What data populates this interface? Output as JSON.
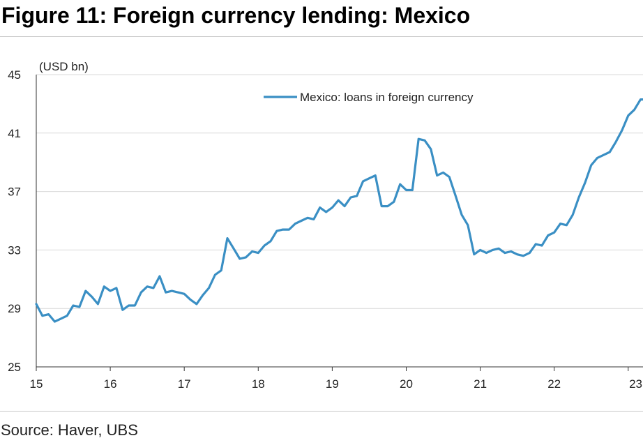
{
  "title": "Figure 11: Foreign currency lending: Mexico",
  "source": "Source: Haver, UBS",
  "colors": {
    "line": "#3a8fc4",
    "grid": "#d9d9d9",
    "axis": "#333333"
  },
  "chart_data": {
    "type": "line",
    "unit_label": "(USD bn)",
    "ylim": [
      25,
      45
    ],
    "yticks": [
      25,
      29,
      33,
      37,
      41,
      45
    ],
    "xlim": [
      15,
      23.2
    ],
    "xticks": [
      15,
      16,
      17,
      18,
      19,
      20,
      21,
      22,
      23
    ],
    "xtick_labels": [
      "15",
      "16",
      "17",
      "18",
      "19",
      "20",
      "21",
      "22",
      "23"
    ],
    "grid": true,
    "legend_position": "top-center",
    "series": [
      {
        "name": "Mexico: loans in foreign currency",
        "x": [
          15.0,
          15.083,
          15.167,
          15.25,
          15.333,
          15.417,
          15.5,
          15.583,
          15.667,
          15.75,
          15.833,
          15.917,
          16.0,
          16.083,
          16.167,
          16.25,
          16.333,
          16.417,
          16.5,
          16.583,
          16.667,
          16.75,
          16.833,
          16.917,
          17.0,
          17.083,
          17.167,
          17.25,
          17.333,
          17.417,
          17.5,
          17.583,
          17.667,
          17.75,
          17.833,
          17.917,
          18.0,
          18.083,
          18.167,
          18.25,
          18.333,
          18.417,
          18.5,
          18.583,
          18.667,
          18.75,
          18.833,
          18.917,
          19.0,
          19.083,
          19.167,
          19.25,
          19.333,
          19.417,
          19.5,
          19.583,
          19.667,
          19.75,
          19.833,
          19.917,
          20.0,
          20.083,
          20.167,
          20.25,
          20.333,
          20.417,
          20.5,
          20.583,
          20.667,
          20.75,
          20.833,
          20.917,
          21.0,
          21.083,
          21.167,
          21.25,
          21.333,
          21.417,
          21.5,
          21.583,
          21.667,
          21.75,
          21.833,
          21.917,
          22.0,
          22.083,
          22.167,
          22.25,
          22.333,
          22.417,
          22.5,
          22.583,
          22.667,
          22.75,
          22.833,
          22.917,
          23.0,
          23.083,
          23.167,
          23.2
        ],
        "values": [
          29.3,
          28.5,
          28.6,
          28.1,
          28.3,
          28.5,
          29.2,
          29.1,
          30.2,
          29.8,
          29.3,
          30.5,
          30.2,
          30.4,
          28.9,
          29.2,
          29.2,
          30.1,
          30.5,
          30.4,
          31.2,
          30.1,
          30.2,
          30.1,
          30.0,
          29.6,
          29.3,
          29.9,
          30.4,
          31.3,
          31.6,
          33.8,
          33.1,
          32.4,
          32.5,
          32.9,
          32.8,
          33.3,
          33.6,
          34.3,
          34.4,
          34.4,
          34.8,
          35.0,
          35.2,
          35.1,
          35.9,
          35.6,
          35.9,
          36.4,
          36.0,
          36.6,
          36.7,
          37.7,
          37.9,
          38.1,
          36.0,
          36.0,
          36.3,
          37.5,
          37.1,
          37.1,
          40.6,
          40.5,
          39.9,
          38.1,
          38.3,
          38.0,
          36.7,
          35.4,
          34.7,
          32.7,
          33.0,
          32.8,
          33.0,
          33.1,
          32.8,
          32.9,
          32.7,
          32.6,
          32.8,
          33.4,
          33.3,
          34.0,
          34.2,
          34.8,
          34.7,
          35.4,
          36.6,
          37.6,
          38.8,
          39.3,
          39.5,
          39.7,
          40.4,
          41.2,
          42.2,
          42.6,
          43.3,
          43.3
        ]
      }
    ]
  }
}
